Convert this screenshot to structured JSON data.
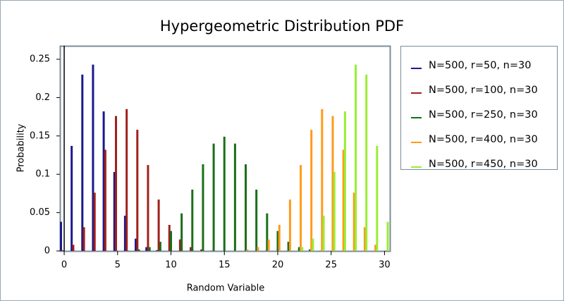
{
  "chart_data": {
    "type": "bar",
    "title": "Hypergeometric Distribution PDF",
    "xlabel": "Random Variable",
    "ylabel": "Probability",
    "xlim": [
      -0.4,
      30.5
    ],
    "ylim": [
      0,
      0.2675
    ],
    "xticks": [
      0,
      5,
      10,
      15,
      20,
      25,
      30
    ],
    "yticks": [
      0,
      0.05,
      0.1,
      0.15,
      0.2,
      0.25
    ],
    "legend": "right",
    "categories": [
      0,
      1,
      2,
      3,
      4,
      5,
      6,
      7,
      8,
      9,
      10,
      11,
      12,
      13,
      14,
      15,
      16,
      17,
      18,
      19,
      20,
      21,
      22,
      23,
      24,
      25,
      26,
      27,
      28,
      29,
      30
    ],
    "series": [
      {
        "name": "N=500, r=50, n=30",
        "color": "#1a1a8c",
        "values": [
          0.038,
          0.137,
          0.23,
          0.243,
          0.182,
          0.103,
          0.046,
          0.016,
          0.005,
          0.001,
          0,
          0,
          0,
          0,
          0,
          0,
          0,
          0,
          0,
          0,
          0,
          0,
          0,
          0,
          0,
          0,
          0,
          0,
          0,
          0,
          0
        ]
      },
      {
        "name": "N=500, r=100, n=30",
        "color": "#a0201a",
        "values": [
          0.001,
          0.008,
          0.031,
          0.076,
          0.132,
          0.176,
          0.185,
          0.158,
          0.112,
          0.067,
          0.034,
          0.015,
          0.005,
          0.002,
          0.0005,
          0,
          0,
          0,
          0,
          0,
          0,
          0,
          0,
          0,
          0,
          0,
          0,
          0,
          0,
          0,
          0
        ]
      },
      {
        "name": "N=500, r=250, n=30",
        "color": "#1a6e1a",
        "values": [
          0,
          0,
          0,
          0,
          0,
          0,
          0.0004,
          0.002,
          0.005,
          0.012,
          0.026,
          0.049,
          0.08,
          0.113,
          0.14,
          0.149,
          0.14,
          0.113,
          0.08,
          0.049,
          0.026,
          0.012,
          0.005,
          0.002,
          0.0004,
          0,
          0,
          0,
          0,
          0,
          0
        ]
      },
      {
        "name": "N=500, r=400, n=30",
        "color": "#ff9a1a",
        "values": [
          0,
          0,
          0,
          0,
          0,
          0,
          0,
          0,
          0,
          0,
          0,
          0,
          0,
          0,
          0,
          0,
          0.0005,
          0.002,
          0.005,
          0.015,
          0.034,
          0.067,
          0.112,
          0.158,
          0.185,
          0.176,
          0.132,
          0.076,
          0.031,
          0.008,
          0.001
        ]
      },
      {
        "name": "N=500, r=450, n=30",
        "color": "#99ee33",
        "values": [
          0,
          0,
          0,
          0,
          0,
          0,
          0,
          0,
          0,
          0,
          0,
          0,
          0,
          0,
          0,
          0,
          0,
          0,
          0,
          0,
          0,
          0.001,
          0.005,
          0.016,
          0.046,
          0.103,
          0.182,
          0.243,
          0.23,
          0.137,
          0.038
        ]
      }
    ]
  }
}
